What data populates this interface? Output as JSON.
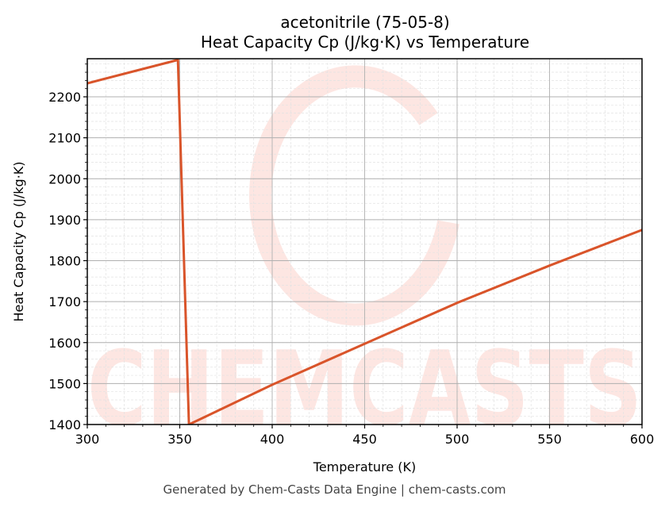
{
  "header": {
    "title_line1": "acetonitrile (75-05-8)",
    "title_line2": "Heat Capacity Cp (J/kg·K) vs Temperature"
  },
  "footer": {
    "text": "Generated by Chem-Casts Data Engine | chem-casts.com"
  },
  "watermark": {
    "text": "CHEMCASTS",
    "color": "#fde0db"
  },
  "colors": {
    "line": "#d9542a",
    "major_grid": "#b0b0b0",
    "minor_grid": "#e2e2e2",
    "axis": "#000000"
  },
  "chart_data": {
    "type": "line",
    "title": "acetonitrile (75-05-8)\nHeat Capacity Cp (J/kg·K) vs Temperature",
    "xlabel": "Temperature (K)",
    "ylabel": "Heat Capacity Cp (J/kg·K)",
    "xlim": [
      300,
      600
    ],
    "ylim": [
      1400,
      2293
    ],
    "xticks": [
      300,
      350,
      400,
      450,
      500,
      550,
      600
    ],
    "yticks": [
      1400,
      1500,
      1600,
      1700,
      1800,
      1900,
      2000,
      2100,
      2200
    ],
    "grid": true,
    "legend": null,
    "series": [
      {
        "name": "Cp",
        "x": [
          300,
          349,
          355,
          400,
          450,
          500,
          550,
          600
        ],
        "y": [
          2233,
          2290,
          1400,
          1497,
          1597,
          1697,
          1788,
          1875
        ]
      }
    ]
  }
}
